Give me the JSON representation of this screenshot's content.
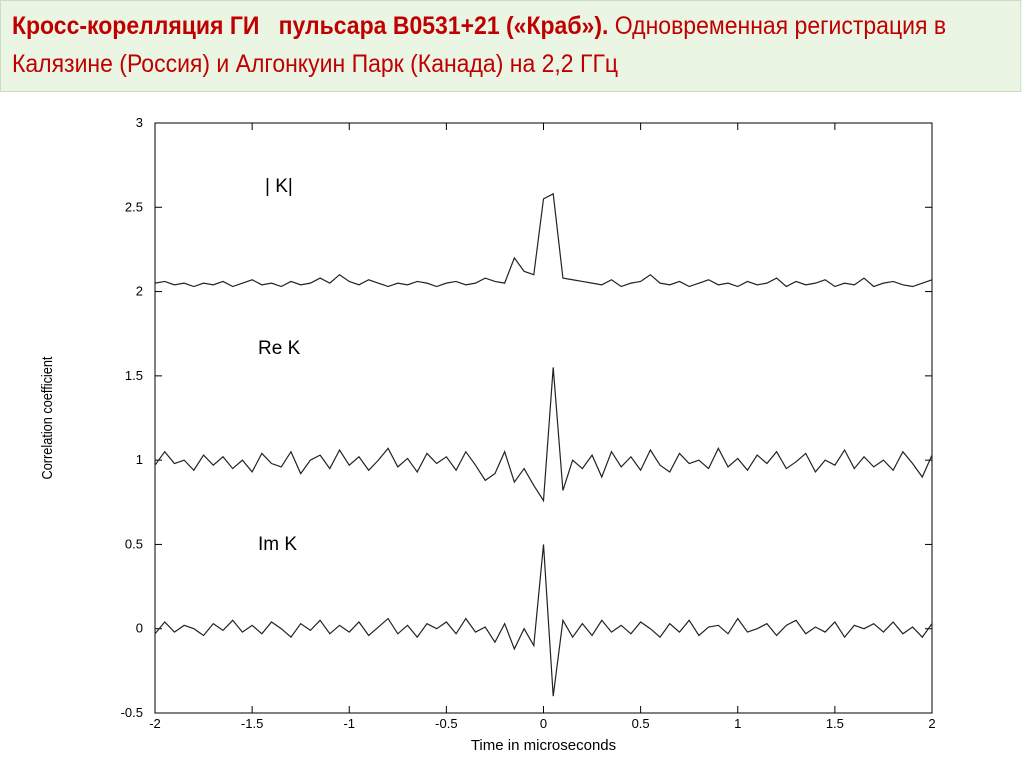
{
  "header": {
    "title_bold": "Кросс-корелляция ГИ   пульсара В0531+21 («Краб»).",
    "title_rest": " Одновременная регистрация в Калязине (Россия) и Алгонкуин Парк (Канада) на 2,2 ГГц"
  },
  "chart_data": {
    "type": "line",
    "xlabel": "Time in microseconds",
    "ylabel": "Correlation coefficient",
    "annotations": [
      "| K|",
      "Re K",
      "Im K"
    ],
    "xlim": [
      -2,
      2
    ],
    "xticks": [
      -2,
      -1.5,
      -1,
      -0.5,
      0,
      0.5,
      1,
      1.5,
      2
    ],
    "ylim": [
      -0.5,
      3
    ],
    "yticks": [
      -0.5,
      0,
      0.5,
      1,
      1.5,
      2,
      2.5,
      3
    ],
    "grid": false,
    "x": [
      -2,
      -1.95,
      -1.9,
      -1.85,
      -1.8,
      -1.75,
      -1.7,
      -1.65,
      -1.6,
      -1.55,
      -1.5,
      -1.45,
      -1.4,
      -1.35,
      -1.3,
      -1.25,
      -1.2,
      -1.15,
      -1.1,
      -1.05,
      -1,
      -0.95,
      -0.9,
      -0.85,
      -0.8,
      -0.75,
      -0.7,
      -0.65,
      -0.6,
      -0.55,
      -0.5,
      -0.45,
      -0.4,
      -0.35,
      -0.3,
      -0.25,
      -0.2,
      -0.15,
      -0.1,
      -0.05,
      0,
      0.05,
      0.1,
      0.15,
      0.2,
      0.25,
      0.3,
      0.35,
      0.4,
      0.45,
      0.5,
      0.55,
      0.6,
      0.65,
      0.7,
      0.75,
      0.8,
      0.85,
      0.9,
      0.95,
      1,
      1.05,
      1.1,
      1.15,
      1.2,
      1.25,
      1.3,
      1.35,
      1.4,
      1.45,
      1.5,
      1.55,
      1.6,
      1.65,
      1.7,
      1.75,
      1.8,
      1.85,
      1.9,
      1.95,
      2
    ],
    "series": [
      {
        "color": "#222222",
        "values": [
          2.05,
          2.06,
          2.04,
          2.05,
          2.03,
          2.05,
          2.04,
          2.06,
          2.03,
          2.05,
          2.07,
          2.04,
          2.05,
          2.03,
          2.06,
          2.04,
          2.05,
          2.08,
          2.05,
          2.1,
          2.06,
          2.04,
          2.07,
          2.05,
          2.03,
          2.05,
          2.04,
          2.06,
          2.05,
          2.03,
          2.05,
          2.06,
          2.04,
          2.05,
          2.08,
          2.06,
          2.05,
          2.2,
          2.12,
          2.1,
          2.55,
          2.58,
          2.08,
          2.07,
          2.06,
          2.05,
          2.04,
          2.07,
          2.03,
          2.05,
          2.06,
          2.1,
          2.05,
          2.04,
          2.06,
          2.03,
          2.05,
          2.07,
          2.04,
          2.05,
          2.03,
          2.06,
          2.04,
          2.05,
          2.08,
          2.03,
          2.06,
          2.04,
          2.05,
          2.07,
          2.03,
          2.05,
          2.04,
          2.08,
          2.03,
          2.05,
          2.06,
          2.04,
          2.03,
          2.05,
          2.07
        ]
      },
      {
        "color": "#222222",
        "values": [
          0.97,
          1.05,
          0.98,
          1.0,
          0.94,
          1.03,
          0.97,
          1.02,
          0.95,
          1.0,
          0.93,
          1.04,
          0.98,
          0.96,
          1.05,
          0.92,
          1.0,
          1.03,
          0.95,
          1.06,
          0.97,
          1.02,
          0.94,
          1.0,
          1.07,
          0.96,
          1.01,
          0.93,
          1.04,
          0.98,
          1.02,
          0.94,
          1.05,
          0.97,
          0.88,
          0.92,
          1.05,
          0.87,
          0.95,
          0.85,
          0.76,
          1.55,
          0.82,
          1.0,
          0.95,
          1.03,
          0.9,
          1.05,
          0.96,
          1.02,
          0.94,
          1.06,
          0.97,
          0.93,
          1.04,
          0.98,
          1.0,
          0.95,
          1.07,
          0.96,
          1.01,
          0.94,
          1.03,
          0.98,
          1.05,
          0.95,
          0.99,
          1.04,
          0.93,
          1.0,
          0.97,
          1.06,
          0.95,
          1.02,
          0.96,
          1.0,
          0.94,
          1.05,
          0.98,
          0.9,
          1.03
        ]
      },
      {
        "color": "#222222",
        "values": [
          -0.03,
          0.04,
          -0.02,
          0.02,
          0.0,
          -0.04,
          0.03,
          -0.01,
          0.05,
          -0.02,
          0.02,
          -0.03,
          0.04,
          0.0,
          -0.05,
          0.03,
          -0.01,
          0.05,
          -0.03,
          0.02,
          -0.02,
          0.04,
          -0.04,
          0.01,
          0.06,
          -0.03,
          0.02,
          -0.05,
          0.03,
          0.0,
          0.04,
          -0.03,
          0.06,
          -0.02,
          0.01,
          -0.08,
          0.03,
          -0.12,
          0.0,
          -0.1,
          0.5,
          -0.4,
          0.05,
          -0.05,
          0.03,
          -0.04,
          0.05,
          -0.02,
          0.02,
          -0.03,
          0.04,
          0.0,
          -0.05,
          0.03,
          -0.02,
          0.05,
          -0.04,
          0.01,
          0.02,
          -0.03,
          0.06,
          -0.02,
          0.0,
          0.03,
          -0.04,
          0.02,
          0.05,
          -0.03,
          0.01,
          -0.02,
          0.04,
          -0.05,
          0.02,
          0.0,
          0.03,
          -0.02,
          0.04,
          -0.03,
          0.01,
          -0.05,
          0.03
        ]
      }
    ]
  }
}
